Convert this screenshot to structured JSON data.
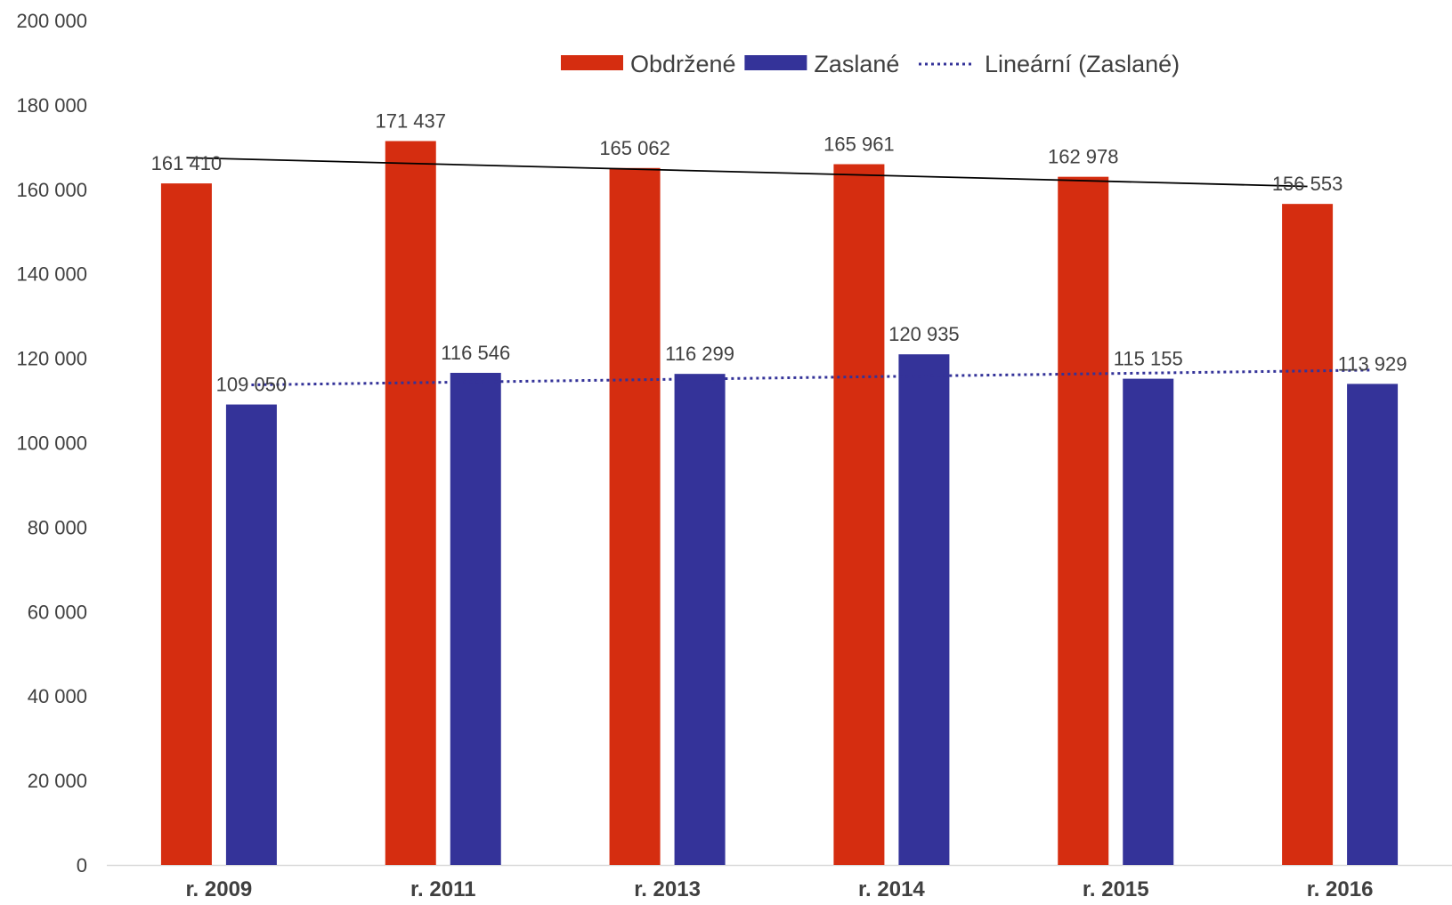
{
  "chart_data": {
    "type": "bar",
    "categories": [
      "r. 2009",
      "r. 2011",
      "r. 2013",
      "r. 2014",
      "r. 2015",
      "r. 2016"
    ],
    "series": [
      {
        "name": "Obdržené",
        "color": "#d52d10",
        "values": [
          161410,
          171437,
          165062,
          165961,
          162978,
          156553
        ],
        "labels": [
          "161 410",
          "171 437",
          "165 062",
          "165 961",
          "162 978",
          "156 553"
        ]
      },
      {
        "name": "Zaslané",
        "color": "#343399",
        "values": [
          109050,
          116546,
          116299,
          120935,
          115155,
          113929
        ],
        "labels": [
          "109 050",
          "116 546",
          "116 299",
          "120 935",
          "115 155",
          "113 929"
        ]
      }
    ],
    "trendlines": [
      {
        "series": "Obdržené",
        "style": "solid",
        "color": "#000000",
        "legend": false,
        "start": 167500,
        "end": 160700
      },
      {
        "name": "Lineární (Zaslané)",
        "series": "Zaslané",
        "style": "dotted",
        "color": "#343399",
        "legend": true,
        "start": 113700,
        "end": 117200
      }
    ],
    "ylim": [
      0,
      200000
    ],
    "yticks": [
      0,
      20000,
      40000,
      60000,
      80000,
      100000,
      120000,
      140000,
      160000,
      180000,
      200000
    ],
    "ytick_labels": [
      "0",
      "20 000",
      "40 000",
      "60 000",
      "80 000",
      "100 000",
      "120 000",
      "140 000",
      "160 000",
      "180 000",
      "200 000"
    ],
    "title": "",
    "xlabel": "",
    "ylabel": "",
    "grid": false,
    "legend_position": "top"
  }
}
